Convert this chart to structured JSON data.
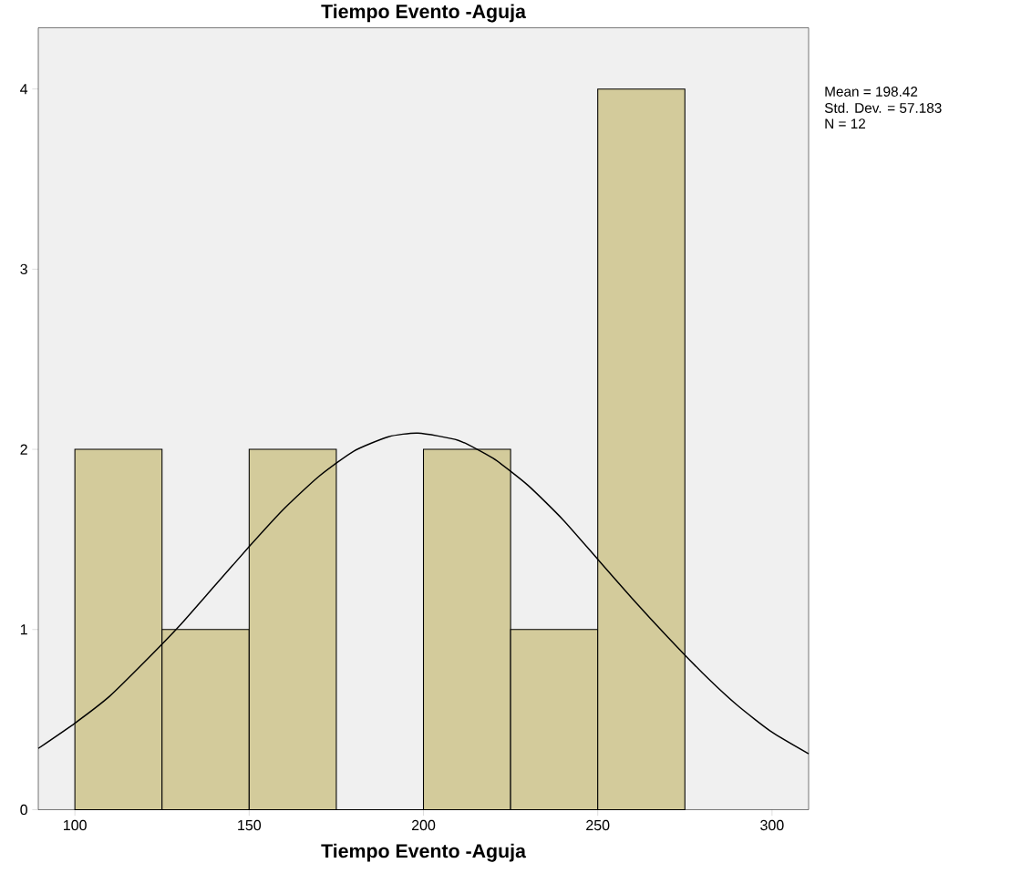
{
  "chart_data": {
    "type": "histogram",
    "title": "Tiempo Evento -Aguja",
    "xlabel": "Tiempo Evento -Aguja",
    "bins": [
      100,
      125,
      150,
      175,
      200,
      225,
      250,
      275
    ],
    "values": [
      2,
      1,
      2,
      0,
      2,
      1,
      4
    ],
    "color": "#d3cb9b",
    "series": [
      {
        "type": "line",
        "color": "#000000",
        "x": [
          89.5,
          100,
          110,
          120,
          130,
          140,
          150,
          160,
          170,
          180,
          190,
          198.42,
          210,
          220,
          230,
          240,
          250,
          260,
          270,
          280,
          290,
          300,
          310.5
        ],
        "values": [
          0.34,
          0.48,
          0.63,
          0.82,
          1.02,
          1.24,
          1.46,
          1.67,
          1.85,
          1.99,
          2.07,
          2.09,
          2.05,
          1.95,
          1.8,
          1.61,
          1.39,
          1.17,
          0.96,
          0.76,
          0.58,
          0.43,
          0.31
        ]
      }
    ],
    "xlim": [
      89.5,
      310.5
    ],
    "ylim": [
      0,
      4.34
    ],
    "xticks": [
      100,
      150,
      200,
      250,
      300
    ],
    "yticks": [
      0,
      1,
      2,
      3,
      4
    ],
    "annotations": [
      "Mean = 198.42",
      "Std. Dev. = 57.183",
      "N = 12"
    ]
  }
}
